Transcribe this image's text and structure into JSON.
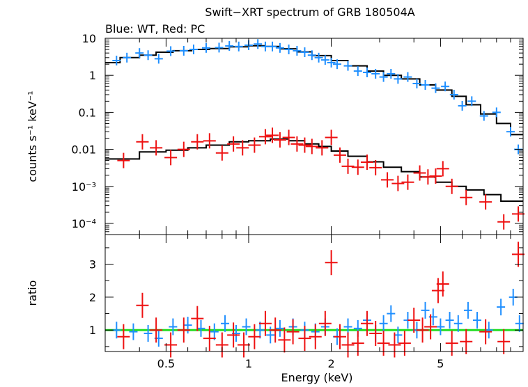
{
  "title": "Swift−XRT spectrum of GRB 180504A",
  "subtitle": "Blue: WT, Red: PC",
  "xlabel": "Energy (keV)",
  "colors": {
    "wt": "#1f8fff",
    "pc": "#ee1111",
    "model": "#000000",
    "unity": "#22dd22"
  },
  "chart_data": [
    {
      "type": "scatter",
      "panel": "spectrum",
      "ylabel": "counts s⁻¹ keV⁻¹",
      "yscale": "log",
      "xscale": "log",
      "xlim": [
        0.3,
        10
      ],
      "ylim": [
        5e-05,
        10
      ],
      "ytick_values": [
        10,
        1,
        0.1,
        0.01,
        0.001,
        0.0001
      ],
      "ytick_labels": [
        "10",
        "1",
        "0.1",
        "0.01",
        "10⁻³",
        "10⁻⁴"
      ],
      "series": [
        {
          "key": "wt",
          "values": [
            [
              0.33,
              2.5
            ],
            [
              0.36,
              3.0
            ],
            [
              0.4,
              4.0
            ],
            [
              0.43,
              3.5
            ],
            [
              0.47,
              2.8
            ],
            [
              0.52,
              4.5
            ],
            [
              0.58,
              4.6
            ],
            [
              0.63,
              5.0
            ],
            [
              0.7,
              5.5
            ],
            [
              0.78,
              5.6
            ],
            [
              0.85,
              6.2
            ],
            [
              0.92,
              6.0
            ],
            [
              1.0,
              6.5
            ],
            [
              1.08,
              7.0
            ],
            [
              1.15,
              6.0
            ],
            [
              1.22,
              6.0
            ],
            [
              1.3,
              5.5
            ],
            [
              1.4,
              5.0
            ],
            [
              1.5,
              4.6
            ],
            [
              1.6,
              4.2
            ],
            [
              1.7,
              3.5
            ],
            [
              1.8,
              3.0
            ],
            [
              1.9,
              2.6
            ],
            [
              2.0,
              2.2
            ],
            [
              2.1,
              2.0
            ],
            [
              2.3,
              1.8
            ],
            [
              2.5,
              1.3
            ],
            [
              2.7,
              1.2
            ],
            [
              2.9,
              1.1
            ],
            [
              3.1,
              0.9
            ],
            [
              3.3,
              1.1
            ],
            [
              3.5,
              0.8
            ],
            [
              3.8,
              0.9
            ],
            [
              4.1,
              0.6
            ],
            [
              4.4,
              0.55
            ],
            [
              4.8,
              0.45
            ],
            [
              5.2,
              0.5
            ],
            [
              5.6,
              0.3
            ],
            [
              6.0,
              0.15
            ],
            [
              6.5,
              0.2
            ],
            [
              7.2,
              0.08
            ],
            [
              8.0,
              0.1
            ],
            [
              9.0,
              0.03
            ],
            [
              9.6,
              0.01
            ]
          ]
        },
        {
          "key": "pc",
          "values": [
            [
              0.35,
              0.005
            ],
            [
              0.41,
              0.016
            ],
            [
              0.46,
              0.011
            ],
            [
              0.52,
              0.006
            ],
            [
              0.58,
              0.01
            ],
            [
              0.65,
              0.016
            ],
            [
              0.72,
              0.017
            ],
            [
              0.8,
              0.008
            ],
            [
              0.88,
              0.014
            ],
            [
              0.95,
              0.011
            ],
            [
              1.05,
              0.013
            ],
            [
              1.15,
              0.022
            ],
            [
              1.22,
              0.024
            ],
            [
              1.3,
              0.018
            ],
            [
              1.4,
              0.021
            ],
            [
              1.5,
              0.014
            ],
            [
              1.6,
              0.013
            ],
            [
              1.7,
              0.012
            ],
            [
              1.85,
              0.011
            ],
            [
              2.0,
              0.021
            ],
            [
              2.15,
              0.007
            ],
            [
              2.3,
              0.0035
            ],
            [
              2.5,
              0.0033
            ],
            [
              2.7,
              0.0045
            ],
            [
              2.9,
              0.0032
            ],
            [
              3.2,
              0.0015
            ],
            [
              3.5,
              0.0012
            ],
            [
              3.8,
              0.0013
            ],
            [
              4.2,
              0.0023
            ],
            [
              4.5,
              0.0018
            ],
            [
              4.8,
              0.0019
            ],
            [
              5.1,
              0.003
            ],
            [
              5.5,
              0.001
            ],
            [
              6.2,
              0.0005
            ],
            [
              7.3,
              0.00038
            ],
            [
              8.5,
              0.00011
            ],
            [
              9.6,
              0.00018
            ]
          ]
        }
      ],
      "model": [
        [
          0.3,
          2.2
        ],
        [
          0.34,
          3.0
        ],
        [
          0.4,
          3.5
        ],
        [
          0.46,
          4.2
        ],
        [
          0.53,
          4.6
        ],
        [
          0.62,
          5.0
        ],
        [
          0.72,
          5.3
        ],
        [
          0.85,
          5.9
        ],
        [
          1.0,
          6.3
        ],
        [
          1.15,
          6.0
        ],
        [
          1.3,
          5.2
        ],
        [
          1.5,
          4.3
        ],
        [
          1.7,
          3.4
        ],
        [
          2.0,
          2.5
        ],
        [
          2.3,
          1.8
        ],
        [
          2.7,
          1.3
        ],
        [
          3.1,
          1.0
        ],
        [
          3.6,
          0.8
        ],
        [
          4.2,
          0.55
        ],
        [
          4.8,
          0.4
        ],
        [
          5.5,
          0.27
        ],
        [
          6.2,
          0.16
        ],
        [
          7.0,
          0.09
        ],
        [
          8.0,
          0.05
        ],
        [
          9.0,
          0.025
        ],
        [
          10.0,
          0.012
        ]
      ],
      "model_pc": [
        [
          0.3,
          0.0055
        ],
        [
          0.4,
          0.0085
        ],
        [
          0.5,
          0.0095
        ],
        [
          0.6,
          0.011
        ],
        [
          0.7,
          0.013
        ],
        [
          0.85,
          0.016
        ],
        [
          1.0,
          0.017
        ],
        [
          1.2,
          0.019
        ],
        [
          1.4,
          0.017
        ],
        [
          1.6,
          0.014
        ],
        [
          1.8,
          0.012
        ],
        [
          2.0,
          0.009
        ],
        [
          2.3,
          0.0065
        ],
        [
          2.7,
          0.0046
        ],
        [
          3.1,
          0.0033
        ],
        [
          3.6,
          0.0025
        ],
        [
          4.2,
          0.0018
        ],
        [
          4.8,
          0.0013
        ],
        [
          5.5,
          0.001
        ],
        [
          6.2,
          0.0008
        ],
        [
          7.2,
          0.0006
        ],
        [
          8.3,
          0.0004
        ],
        [
          10.0,
          0.00017
        ]
      ]
    },
    {
      "type": "scatter",
      "panel": "ratio",
      "ylabel": "ratio",
      "xscale": "log",
      "xlim": [
        0.3,
        10
      ],
      "ylim": [
        0.35,
        3.9
      ],
      "yticks": [
        1,
        2,
        3
      ],
      "reference_line": 1,
      "series": [
        {
          "key": "wt",
          "values": [
            [
              0.33,
              1.0
            ],
            [
              0.38,
              0.95
            ],
            [
              0.43,
              0.9
            ],
            [
              0.47,
              0.75
            ],
            [
              0.53,
              1.1
            ],
            [
              0.6,
              1.15
            ],
            [
              0.67,
              1.05
            ],
            [
              0.75,
              0.95
            ],
            [
              0.82,
              1.2
            ],
            [
              0.9,
              0.9
            ],
            [
              0.98,
              1.1
            ],
            [
              1.1,
              1.0
            ],
            [
              1.2,
              0.85
            ],
            [
              1.3,
              1.05
            ],
            [
              1.45,
              1.1
            ],
            [
              1.6,
              1.0
            ],
            [
              1.75,
              0.95
            ],
            [
              1.9,
              1.1
            ],
            [
              2.1,
              0.8
            ],
            [
              2.3,
              1.1
            ],
            [
              2.5,
              1.05
            ],
            [
              2.7,
              1.3
            ],
            [
              2.9,
              0.9
            ],
            [
              3.1,
              1.2
            ],
            [
              3.3,
              1.5
            ],
            [
              3.5,
              0.85
            ],
            [
              3.8,
              1.3
            ],
            [
              4.1,
              1.0
            ],
            [
              4.4,
              1.6
            ],
            [
              4.7,
              1.4
            ],
            [
              5.0,
              1.1
            ],
            [
              5.4,
              1.3
            ],
            [
              5.8,
              1.2
            ],
            [
              6.3,
              1.6
            ],
            [
              6.8,
              1.3
            ],
            [
              7.5,
              1.0
            ],
            [
              8.3,
              1.7
            ],
            [
              9.2,
              2.0
            ],
            [
              9.7,
              1.2
            ]
          ]
        },
        {
          "key": "pc",
          "values": [
            [
              0.35,
              0.8
            ],
            [
              0.41,
              1.75
            ],
            [
              0.46,
              1.0
            ],
            [
              0.52,
              0.55
            ],
            [
              0.58,
              1.0
            ],
            [
              0.65,
              1.35
            ],
            [
              0.72,
              0.75
            ],
            [
              0.8,
              0.55
            ],
            [
              0.88,
              0.85
            ],
            [
              0.96,
              0.55
            ],
            [
              1.05,
              0.8
            ],
            [
              1.15,
              1.2
            ],
            [
              1.25,
              1.0
            ],
            [
              1.35,
              0.7
            ],
            [
              1.45,
              0.95
            ],
            [
              1.6,
              0.75
            ],
            [
              1.75,
              0.8
            ],
            [
              1.9,
              1.2
            ],
            [
              2.0,
              3.05
            ],
            [
              2.15,
              0.8
            ],
            [
              2.3,
              0.55
            ],
            [
              2.5,
              0.6
            ],
            [
              2.7,
              1.2
            ],
            [
              2.9,
              0.9
            ],
            [
              3.1,
              0.6
            ],
            [
              3.4,
              0.55
            ],
            [
              3.7,
              0.6
            ],
            [
              4.0,
              1.3
            ],
            [
              4.3,
              1.0
            ],
            [
              4.6,
              1.1
            ],
            [
              4.9,
              2.2
            ],
            [
              5.1,
              2.4
            ],
            [
              5.5,
              0.6
            ],
            [
              6.2,
              0.65
            ],
            [
              7.3,
              0.95
            ],
            [
              8.5,
              0.65
            ],
            [
              9.6,
              3.3
            ]
          ]
        }
      ]
    }
  ],
  "xtick_labels": [
    {
      "value": 0.5,
      "label": "0.5"
    },
    {
      "value": 1,
      "label": "1"
    },
    {
      "value": 2,
      "label": "2"
    },
    {
      "value": 5,
      "label": "5"
    }
  ]
}
